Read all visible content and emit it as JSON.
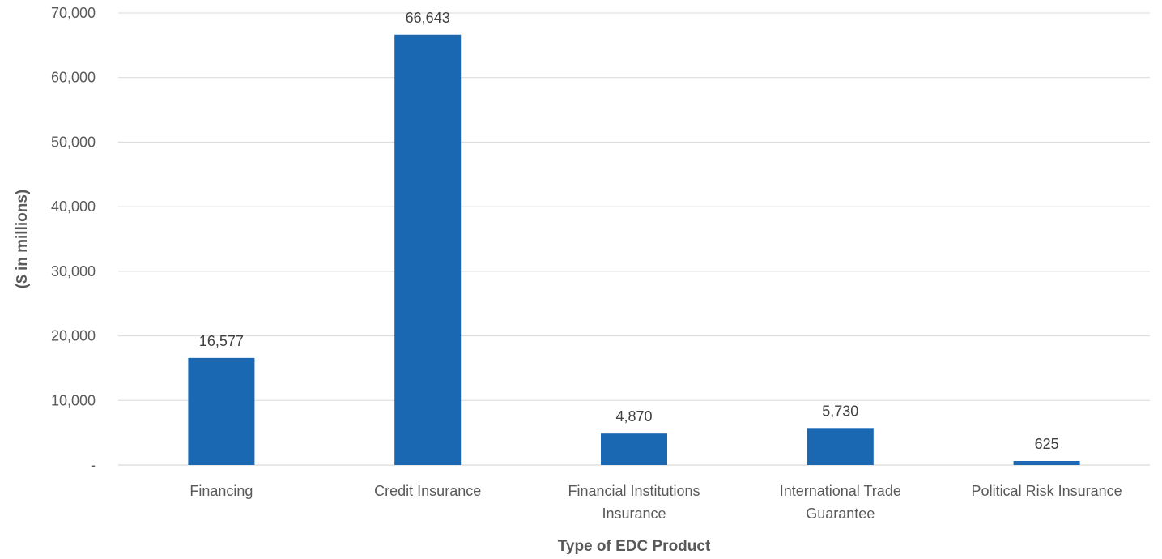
{
  "chart_data": {
    "type": "bar",
    "title": "",
    "xlabel": "Type of EDC Product",
    "ylabel": "($ in millions)",
    "categories": [
      [
        "Financing"
      ],
      [
        "Credit Insurance"
      ],
      [
        "Financial Institutions",
        "Insurance"
      ],
      [
        "International Trade",
        "Guarantee"
      ],
      [
        "Political Risk Insurance"
      ]
    ],
    "values": [
      16577,
      66643,
      4870,
      5730,
      625
    ],
    "value_labels": [
      "16,577",
      "66,643",
      "4,870",
      "5,730",
      "625"
    ],
    "ylim": [
      0,
      70000
    ],
    "yticks": [
      0,
      10000,
      20000,
      30000,
      40000,
      50000,
      60000,
      70000
    ],
    "ytick_labels": [
      "-",
      "10,000",
      "20,000",
      "30,000",
      "40,000",
      "50,000",
      "60,000",
      "70,000"
    ],
    "grid": true,
    "legend": "none",
    "colors": {
      "bar": "#1a67b2"
    }
  }
}
